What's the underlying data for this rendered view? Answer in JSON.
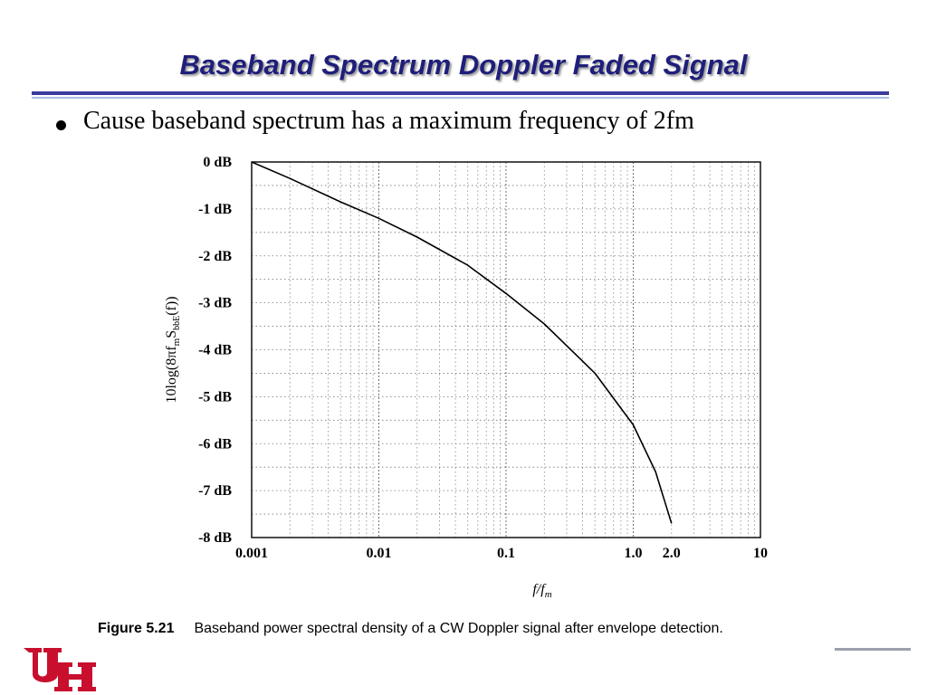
{
  "slide": {
    "title": "Baseband Spectrum Doppler Faded Signal",
    "bullets": [
      "Cause baseband spectrum has a maximum frequency of 2fm"
    ]
  },
  "caption": {
    "figure_number": "Figure 5.21",
    "text": "Baseband power spectral density of a CW Doppler signal after envelope detection."
  },
  "logo": {
    "text": "UH",
    "color": "#c8102e"
  },
  "chart_data": {
    "type": "line",
    "title": "",
    "xlabel": "f/f",
    "xlabel_sub": "m",
    "ylabel": "10log(8πf",
    "ylabel_sub": "m",
    "ylabel_mid": "S",
    "ylabel_mid_sub": "bbE",
    "ylabel_end": "(f))",
    "x_scale": "log",
    "xlim": [
      0.001,
      10
    ],
    "ylim": [
      -8,
      0
    ],
    "grid": true,
    "x_ticks": [
      {
        "value": 0.001,
        "label": "0.001"
      },
      {
        "value": 0.01,
        "label": "0.01"
      },
      {
        "value": 0.1,
        "label": "0.1"
      },
      {
        "value": 1.0,
        "label": "1.0"
      },
      {
        "value": 2.0,
        "label": "2.0"
      },
      {
        "value": 10,
        "label": "10"
      }
    ],
    "y_ticks": [
      {
        "value": 0,
        "label": "0 dB"
      },
      {
        "value": -1,
        "label": "-1 dB"
      },
      {
        "value": -2,
        "label": "-2 dB"
      },
      {
        "value": -3,
        "label": "-3 dB"
      },
      {
        "value": -4,
        "label": "-4 dB"
      },
      {
        "value": -5,
        "label": "-5 dB"
      },
      {
        "value": -6,
        "label": "-6 dB"
      },
      {
        "value": -7,
        "label": "-7 dB"
      },
      {
        "value": -8,
        "label": "-8 dB"
      }
    ],
    "series": [
      {
        "x": [
          0.001,
          0.002,
          0.005,
          0.01,
          0.02,
          0.05,
          0.1,
          0.2,
          0.5,
          1.0,
          1.5,
          1.8,
          2.0
        ],
        "y": [
          0.0,
          -0.35,
          -0.85,
          -1.2,
          -1.6,
          -2.2,
          -2.8,
          -3.45,
          -4.5,
          -5.6,
          -6.6,
          -7.3,
          -7.7
        ]
      }
    ]
  }
}
